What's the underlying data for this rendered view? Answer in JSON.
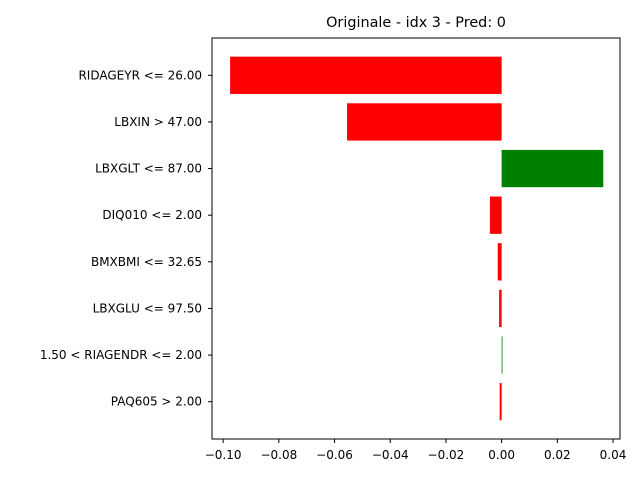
{
  "chart_data": {
    "type": "bar",
    "orientation": "horizontal",
    "title": "Originale - idx 3 - Pred: 0",
    "xlabel": "",
    "ylabel": "",
    "categories": [
      "RIDAGEYR <= 26.00",
      "LBXIN > 47.00",
      "LBXGLT <= 87.00",
      "DIQ010 <= 2.00",
      "BMXBMI <= 32.65",
      "LBXGLU <= 97.50",
      "1.50 < RIAGENDR <= 2.00",
      "PAQ605 > 2.00"
    ],
    "values": [
      -0.0975,
      -0.0555,
      0.0365,
      -0.0042,
      -0.0014,
      -0.0009,
      0.0003,
      -0.0007
    ],
    "xlim": [
      -0.104,
      0.0425
    ],
    "xticks": [
      -0.1,
      -0.08,
      -0.06,
      -0.04,
      -0.02,
      0.0,
      0.02,
      0.04
    ],
    "xtick_labels": [
      "−0.10",
      "−0.08",
      "−0.06",
      "−0.04",
      "−0.02",
      "0.00",
      "0.02",
      "0.04"
    ],
    "grid": false,
    "colors": {
      "positive": "#008000",
      "negative": "#ff0000"
    }
  }
}
